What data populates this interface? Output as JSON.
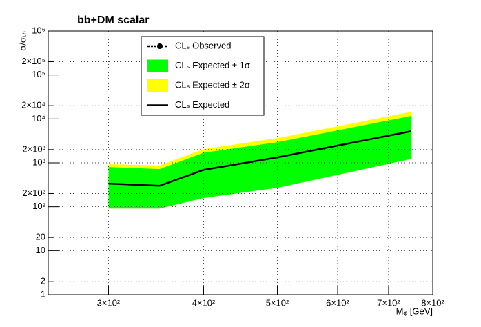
{
  "chart_data": {
    "type": "line",
    "title": "bb+DM scalar",
    "x_label": "Mᵩ [GeV]",
    "y_label": "σ/σₜₕ",
    "log_x": true,
    "log_y": true,
    "grid": true,
    "x": [
      300,
      350,
      400,
      500,
      750
    ],
    "xlim": [
      250,
      800
    ],
    "xticks": [
      {
        "value": 300,
        "label": "3×10²"
      },
      {
        "value": 400,
        "label": "4×10²"
      },
      {
        "value": 500,
        "label": "5×10²"
      },
      {
        "value": 600,
        "label": "6×10²"
      },
      {
        "value": 700,
        "label": "7×10²"
      },
      {
        "value": 800,
        "label": "8×10²"
      }
    ],
    "ylim": [
      1,
      1000000
    ],
    "yticks": [
      1,
      2,
      10,
      20,
      {
        "value": 100,
        "label": "10²"
      },
      {
        "value": 200,
        "label": "2×10²"
      },
      {
        "value": 1000,
        "label": "10³"
      },
      {
        "value": 2000,
        "label": "2×10³"
      },
      {
        "value": 10000,
        "label": "10⁴"
      },
      {
        "value": 20000,
        "label": "2×10⁴"
      },
      {
        "value": 100000,
        "label": "10⁵"
      },
      {
        "value": 200000,
        "label": "2×10⁵"
      },
      {
        "value": 1000000,
        "label": "10⁶"
      }
    ],
    "bands": [
      {
        "name": "CLₛ  Expected ± 2σ",
        "color": "#ffff00",
        "upper": [
          930,
          870,
          2050,
          3650,
          14500
        ],
        "lower": [
          91,
          91,
          158,
          270,
          1230
        ]
      },
      {
        "name": "CLₛ  Expected ± 1σ",
        "color": "#00ff00",
        "upper": [
          800,
          720,
          1700,
          2950,
          11700
        ],
        "lower": [
          91,
          91,
          158,
          270,
          1230
        ]
      }
    ],
    "series": [
      {
        "name": "CLₛ Observed",
        "color": "#000000",
        "values": [
          null,
          null,
          null,
          null,
          null
        ]
      },
      {
        "name": "CLₛ  Expected",
        "color": "#000000",
        "values": [
          337,
          300,
          690,
          1330,
          5250
        ]
      }
    ]
  }
}
